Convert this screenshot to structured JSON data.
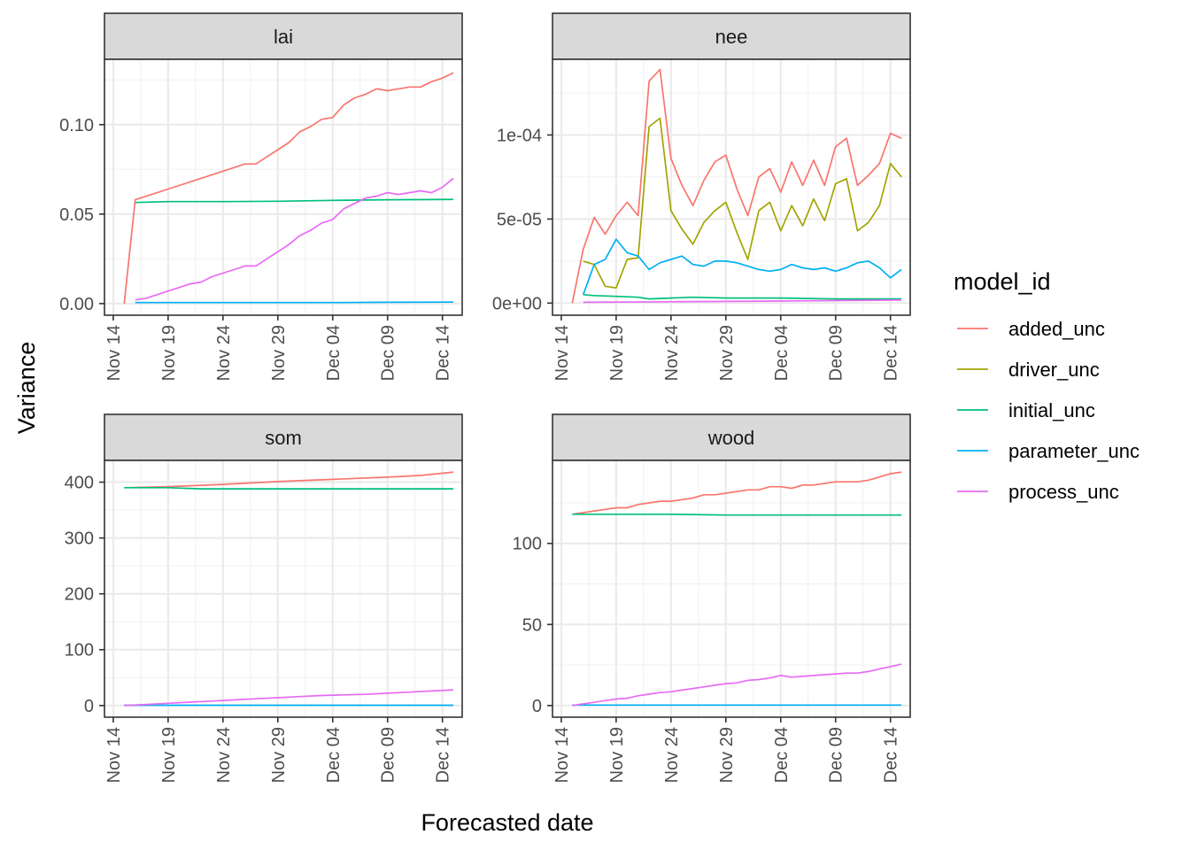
{
  "chart_data": {
    "type": "line",
    "xlabel": "Forecasted date",
    "ylabel": "Variance",
    "legend": {
      "title": "model_id",
      "placement": "right",
      "entries": [
        {
          "name": "added_unc",
          "color": "#F8766D"
        },
        {
          "name": "driver_unc",
          "color": "#A3A500"
        },
        {
          "name": "initial_unc",
          "color": "#00BF7D"
        },
        {
          "name": "parameter_unc",
          "color": "#00B0F6"
        },
        {
          "name": "process_unc",
          "color": "#E76BF3"
        }
      ]
    },
    "x_ticks": [
      "Nov 14",
      "Nov 19",
      "Nov 24",
      "Nov 29",
      "Dec 04",
      "Dec 09",
      "Dec 14"
    ],
    "x_tick_days": [
      0,
      5,
      10,
      15,
      20,
      25,
      30
    ],
    "xlim_days": [
      -0.8,
      31.8
    ],
    "grid": true,
    "panels": [
      {
        "name": "lai",
        "ylim": [
          -0.0065,
          0.1365
        ],
        "y_ticks": [
          0,
          0.05,
          0.1
        ],
        "y_tick_labels": [
          "0.00",
          "0.05",
          "0.10"
        ],
        "series": [
          {
            "name": "added_unc",
            "x": [
              1,
              2,
              3,
              4,
              5,
              6,
              7,
              8,
              9,
              10,
              11,
              12,
              13,
              14,
              15,
              16,
              17,
              18,
              19,
              20,
              21,
              22,
              23,
              24,
              25,
              26,
              27,
              28,
              29,
              30,
              31
            ],
            "y": [
              0.0,
              0.058,
              0.06,
              0.062,
              0.064,
              0.066,
              0.068,
              0.07,
              0.072,
              0.074,
              0.076,
              0.078,
              0.078,
              0.082,
              0.086,
              0.09,
              0.096,
              0.099,
              0.103,
              0.104,
              0.111,
              0.115,
              0.117,
              0.12,
              0.119,
              0.12,
              0.121,
              0.121,
              0.124,
              0.126,
              0.129
            ]
          },
          {
            "name": "initial_unc",
            "x": [
              2,
              5,
              10,
              15,
              20,
              25,
              31
            ],
            "y": [
              0.0565,
              0.057,
              0.057,
              0.0572,
              0.0577,
              0.058,
              0.0582
            ]
          },
          {
            "name": "parameter_unc",
            "x": [
              2,
              10,
              20,
              25,
              31
            ],
            "y": [
              0.0006,
              0.0006,
              0.0006,
              0.0007,
              0.0008
            ]
          },
          {
            "name": "process_unc",
            "x": [
              2,
              3,
              4,
              5,
              6,
              7,
              8,
              9,
              10,
              11,
              12,
              13,
              14,
              15,
              16,
              17,
              18,
              19,
              20,
              21,
              22,
              23,
              24,
              25,
              26,
              27,
              28,
              29,
              30,
              31
            ],
            "y": [
              0.002,
              0.003,
              0.005,
              0.007,
              0.009,
              0.011,
              0.012,
              0.015,
              0.017,
              0.019,
              0.021,
              0.021,
              0.025,
              0.029,
              0.033,
              0.038,
              0.041,
              0.045,
              0.047,
              0.053,
              0.056,
              0.059,
              0.06,
              0.062,
              0.061,
              0.062,
              0.063,
              0.062,
              0.065,
              0.07
            ]
          }
        ]
      },
      {
        "name": "nee",
        "ylim": [
          -7.2e-06,
          0.000145
        ],
        "y_ticks": [
          0,
          5e-05,
          0.0001
        ],
        "y_tick_labels": [
          "0e+00",
          "5e-05",
          "1e-04"
        ],
        "series": [
          {
            "name": "added_unc",
            "x": [
              1,
              2,
              3,
              4,
              5,
              6,
              7,
              8,
              9,
              10,
              11,
              12,
              13,
              14,
              15,
              16,
              17,
              18,
              19,
              20,
              21,
              22,
              23,
              24,
              25,
              26,
              27,
              28,
              29,
              30,
              31
            ],
            "y": [
              0.0,
              3.2e-05,
              5.1e-05,
              4.1e-05,
              5.2e-05,
              6e-05,
              5.2e-05,
              0.000132,
              0.000139,
              8.6e-05,
              7e-05,
              5.8e-05,
              7.3e-05,
              8.4e-05,
              8.8e-05,
              6.8e-05,
              5.2e-05,
              7.5e-05,
              8e-05,
              6.6e-05,
              8.4e-05,
              7e-05,
              8.5e-05,
              7e-05,
              9.3e-05,
              9.8e-05,
              7e-05,
              7.6e-05,
              8.3e-05,
              0.000101,
              9.8e-05
            ]
          },
          {
            "name": "driver_unc",
            "x": [
              2,
              3,
              4,
              5,
              6,
              7,
              8,
              9,
              10,
              11,
              12,
              13,
              14,
              15,
              16,
              17,
              18,
              19,
              20,
              21,
              22,
              23,
              24,
              25,
              26,
              27,
              28,
              29,
              30,
              31
            ],
            "y": [
              2.5e-05,
              2.3e-05,
              1e-05,
              9e-06,
              2.6e-05,
              2.7e-05,
              0.000105,
              0.00011,
              5.5e-05,
              4.4e-05,
              3.5e-05,
              4.8e-05,
              5.5e-05,
              6e-05,
              4.2e-05,
              2.6e-05,
              5.5e-05,
              6e-05,
              4.3e-05,
              5.8e-05,
              4.6e-05,
              6.2e-05,
              4.9e-05,
              7.1e-05,
              7.4e-05,
              4.3e-05,
              4.8e-05,
              5.8e-05,
              8.3e-05,
              7.5e-05
            ]
          },
          {
            "name": "initial_unc",
            "x": [
              2,
              3,
              5,
              7,
              8,
              10,
              12,
              15,
              20,
              25,
              31
            ],
            "y": [
              5e-06,
              4.5e-06,
              4e-06,
              3.5e-06,
              2.5e-06,
              3e-06,
              3.5e-06,
              3e-06,
              3e-06,
              2.5e-06,
              2.5e-06
            ]
          },
          {
            "name": "parameter_unc",
            "x": [
              2,
              3,
              4,
              5,
              6,
              7,
              8,
              9,
              10,
              11,
              12,
              13,
              14,
              15,
              16,
              17,
              18,
              19,
              20,
              21,
              22,
              23,
              24,
              25,
              26,
              27,
              28,
              29,
              30,
              31
            ],
            "y": [
              5e-06,
              2.3e-05,
              2.6e-05,
              3.8e-05,
              3e-05,
              2.8e-05,
              2e-05,
              2.4e-05,
              2.6e-05,
              2.8e-05,
              2.3e-05,
              2.2e-05,
              2.5e-05,
              2.5e-05,
              2.4e-05,
              2.2e-05,
              2e-05,
              1.9e-05,
              2e-05,
              2.3e-05,
              2.1e-05,
              2e-05,
              2.1e-05,
              1.9e-05,
              2.1e-05,
              2.4e-05,
              2.5e-05,
              2.1e-05,
              1.5e-05,
              2e-05
            ]
          },
          {
            "name": "process_unc",
            "x": [
              2,
              10,
              20,
              25,
              31
            ],
            "y": [
              5e-07,
              8e-07,
              1.2e-06,
              1.5e-06,
              1.8e-06
            ]
          }
        ]
      },
      {
        "name": "som",
        "ylim": [
          -20.9,
          438.9
        ],
        "y_ticks": [
          0,
          100,
          200,
          300,
          400
        ],
        "y_tick_labels": [
          "0",
          "100",
          "200",
          "300",
          "400"
        ],
        "series": [
          {
            "name": "added_unc",
            "x": [
              1,
              5,
              10,
              15,
              20,
              25,
              28,
              31
            ],
            "y": [
              390,
              392,
              396,
              401,
              405,
              409,
              412,
              418
            ]
          },
          {
            "name": "initial_unc",
            "x": [
              1,
              5,
              8,
              10,
              15,
              20,
              25,
              31
            ],
            "y": [
              390,
              390,
              388,
              388,
              388,
              388,
              388,
              388
            ]
          },
          {
            "name": "parameter_unc",
            "x": [
              1,
              31
            ],
            "y": [
              0.5,
              0.5
            ]
          },
          {
            "name": "process_unc",
            "x": [
              1,
              3,
              5,
              7,
              9,
              11,
              13,
              15,
              17,
              19,
              21,
              23,
              25,
              27,
              29,
              31
            ],
            "y": [
              0,
              2,
              4,
              6,
              8,
              10,
              12,
              14,
              16,
              18,
              19,
              20,
              22,
              24,
              26,
              28
            ]
          }
        ]
      },
      {
        "name": "wood",
        "ylim": [
          -7.2,
          151.2
        ],
        "y_ticks": [
          0,
          50,
          100
        ],
        "y_tick_labels": [
          "0",
          "50",
          "100"
        ],
        "series": [
          {
            "name": "added_unc",
            "x": [
              1,
              2,
              3,
              4,
              5,
              6,
              7,
              8,
              9,
              10,
              11,
              12,
              13,
              14,
              15,
              16,
              17,
              18,
              19,
              20,
              21,
              22,
              23,
              24,
              25,
              26,
              27,
              28,
              29,
              30,
              31
            ],
            "y": [
              118,
              119,
              120,
              121,
              122,
              122,
              124,
              125,
              126,
              126,
              127,
              128,
              130,
              130,
              131,
              132,
              133,
              133,
              135,
              135,
              134,
              136,
              136,
              137,
              138,
              138,
              138,
              139,
              141,
              143,
              144
            ]
          },
          {
            "name": "initial_unc",
            "x": [
              1,
              5,
              10,
              15,
              20,
              25,
              31
            ],
            "y": [
              118,
              118,
              118,
              117.5,
              117.5,
              117.5,
              117.5
            ]
          },
          {
            "name": "parameter_unc",
            "x": [
              1,
              31
            ],
            "y": [
              0.3,
              0.3
            ]
          },
          {
            "name": "process_unc",
            "x": [
              1,
              2,
              3,
              4,
              5,
              6,
              7,
              8,
              9,
              10,
              11,
              12,
              13,
              14,
              15,
              16,
              17,
              18,
              19,
              20,
              21,
              22,
              23,
              24,
              25,
              26,
              27,
              28,
              29,
              30,
              31
            ],
            "y": [
              0,
              1,
              2,
              3,
              4,
              4.5,
              6,
              7,
              8,
              8.5,
              9.5,
              10.5,
              11.5,
              12.5,
              13.5,
              14,
              15.5,
              16,
              17,
              18.5,
              17.5,
              18,
              18.5,
              19,
              19.5,
              20,
              20,
              21,
              22.5,
              24,
              25.5
            ]
          }
        ]
      }
    ]
  }
}
